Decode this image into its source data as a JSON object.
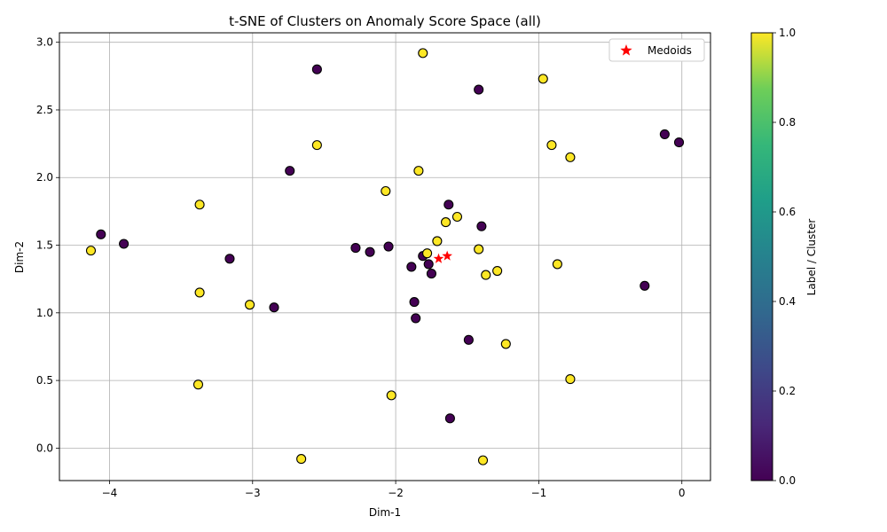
{
  "chart_data": {
    "type": "scatter",
    "title": "t-SNE of Clusters on Anomaly Score Space (all)",
    "xlabel": "Dim-1",
    "ylabel": "Dim-2",
    "xlim": [
      -4.35,
      0.2
    ],
    "ylim": [
      -0.24,
      3.07
    ],
    "xticks": [
      -4,
      -3,
      -2,
      -1,
      0
    ],
    "yticks": [
      0.0,
      0.5,
      1.0,
      1.5,
      2.0,
      2.5,
      3.0
    ],
    "xtick_labels": [
      "−4",
      "−3",
      "−2",
      "−1",
      "0"
    ],
    "ytick_labels": [
      "0.0",
      "0.5",
      "1.0",
      "1.5",
      "2.0",
      "2.5",
      "3.0"
    ],
    "grid": true,
    "legend": {
      "placement": "top-right",
      "entries": [
        {
          "label": "Medoids",
          "marker": "star",
          "color": "#ff0000"
        }
      ]
    },
    "colorbar": {
      "label": "Label / Cluster",
      "range": [
        0.0,
        1.0
      ],
      "ticks": [
        0.0,
        0.2,
        0.4,
        0.6,
        0.8,
        1.0
      ],
      "tick_labels": [
        "0.0",
        "0.2",
        "0.4",
        "0.6",
        "0.8",
        "1.0"
      ],
      "colormap": "viridis",
      "stops": [
        "#440154",
        "#3b528b",
        "#21918c",
        "#5ec962",
        "#fde725"
      ]
    },
    "points": [
      {
        "x": -4.13,
        "y": 1.46,
        "label": 1
      },
      {
        "x": -4.06,
        "y": 1.58,
        "label": 0
      },
      {
        "x": -3.9,
        "y": 1.51,
        "label": 0
      },
      {
        "x": -3.37,
        "y": 1.8,
        "label": 1
      },
      {
        "x": -3.37,
        "y": 1.15,
        "label": 1
      },
      {
        "x": -3.38,
        "y": 0.47,
        "label": 1
      },
      {
        "x": -3.16,
        "y": 1.4,
        "label": 0
      },
      {
        "x": -3.02,
        "y": 1.06,
        "label": 1
      },
      {
        "x": -2.85,
        "y": 1.04,
        "label": 0
      },
      {
        "x": -2.74,
        "y": 2.05,
        "label": 0
      },
      {
        "x": -2.66,
        "y": -0.08,
        "label": 1
      },
      {
        "x": -2.55,
        "y": 2.8,
        "label": 0
      },
      {
        "x": -2.55,
        "y": 2.24,
        "label": 1
      },
      {
        "x": -2.28,
        "y": 1.48,
        "label": 0
      },
      {
        "x": -2.18,
        "y": 1.45,
        "label": 0
      },
      {
        "x": -2.07,
        "y": 1.9,
        "label": 1
      },
      {
        "x": -2.05,
        "y": 1.49,
        "label": 0
      },
      {
        "x": -2.03,
        "y": 0.39,
        "label": 1
      },
      {
        "x": -1.89,
        "y": 1.34,
        "label": 0
      },
      {
        "x": -1.87,
        "y": 1.08,
        "label": 0
      },
      {
        "x": -1.86,
        "y": 0.96,
        "label": 0
      },
      {
        "x": -1.84,
        "y": 2.05,
        "label": 1
      },
      {
        "x": -1.81,
        "y": 2.92,
        "label": 1
      },
      {
        "x": -1.81,
        "y": 1.42,
        "label": 0
      },
      {
        "x": -1.78,
        "y": 1.44,
        "label": 1
      },
      {
        "x": -1.77,
        "y": 1.36,
        "label": 0
      },
      {
        "x": -1.75,
        "y": 1.29,
        "label": 0
      },
      {
        "x": -1.71,
        "y": 1.53,
        "label": 1
      },
      {
        "x": -1.65,
        "y": 1.67,
        "label": 1
      },
      {
        "x": -1.63,
        "y": 1.8,
        "label": 0
      },
      {
        "x": -1.62,
        "y": 0.22,
        "label": 0
      },
      {
        "x": -1.57,
        "y": 1.71,
        "label": 1
      },
      {
        "x": -1.49,
        "y": 0.8,
        "label": 0
      },
      {
        "x": -1.42,
        "y": 2.65,
        "label": 0
      },
      {
        "x": -1.42,
        "y": 1.47,
        "label": 1
      },
      {
        "x": -1.4,
        "y": 1.64,
        "label": 0
      },
      {
        "x": -1.39,
        "y": -0.09,
        "label": 1
      },
      {
        "x": -1.37,
        "y": 1.28,
        "label": 1
      },
      {
        "x": -1.29,
        "y": 1.31,
        "label": 1
      },
      {
        "x": -1.23,
        "y": 0.77,
        "label": 1
      },
      {
        "x": -0.97,
        "y": 2.73,
        "label": 1
      },
      {
        "x": -0.91,
        "y": 2.24,
        "label": 1
      },
      {
        "x": -0.87,
        "y": 1.36,
        "label": 1
      },
      {
        "x": -0.78,
        "y": 2.15,
        "label": 1
      },
      {
        "x": -0.78,
        "y": 0.51,
        "label": 1
      },
      {
        "x": -0.26,
        "y": 1.2,
        "label": 0
      },
      {
        "x": -0.12,
        "y": 2.32,
        "label": 0
      },
      {
        "x": -0.02,
        "y": 2.26,
        "label": 0
      }
    ],
    "medoids": [
      {
        "x": -1.7,
        "y": 1.4
      },
      {
        "x": -1.64,
        "y": 1.42
      }
    ]
  }
}
